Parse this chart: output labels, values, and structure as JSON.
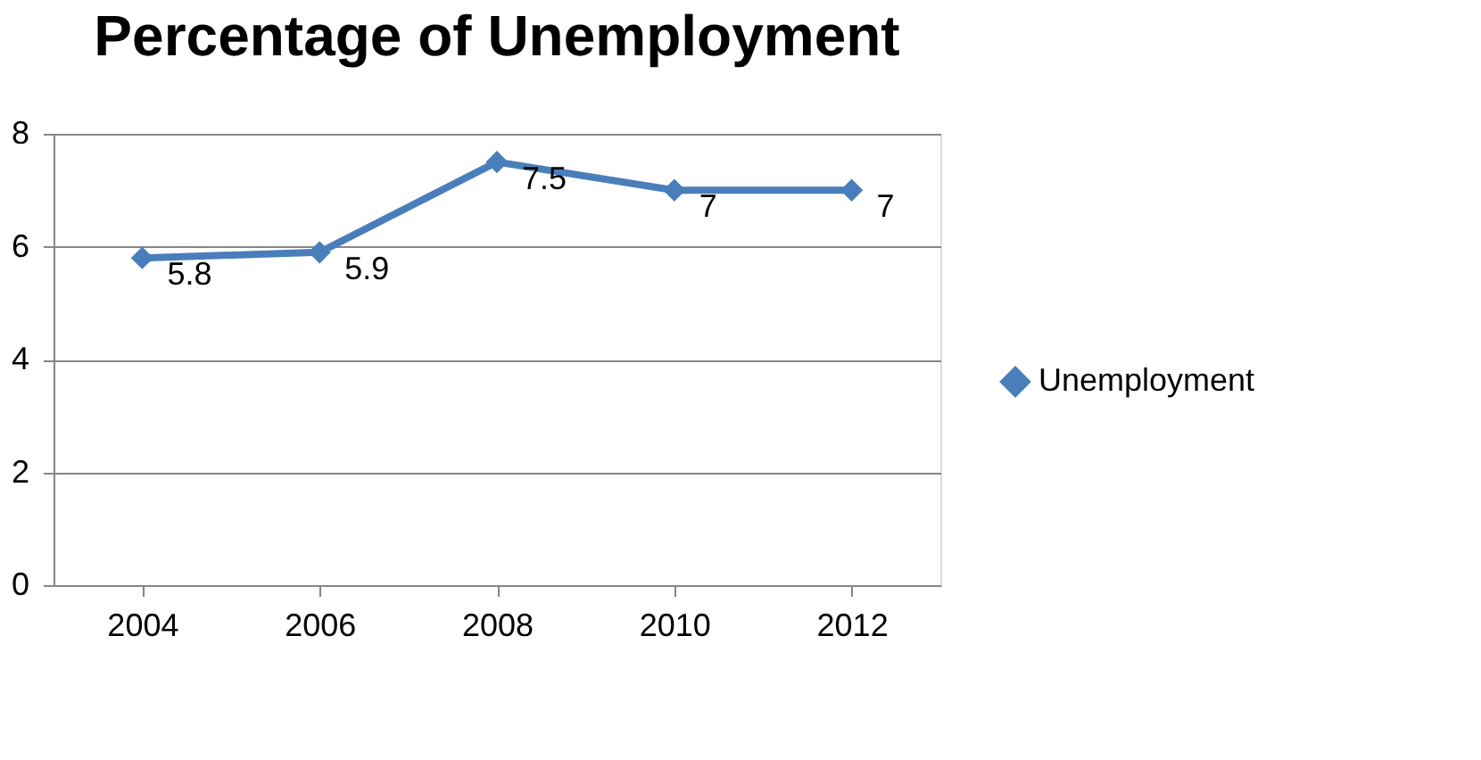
{
  "chart_data": {
    "type": "line",
    "title": "Percentage of Unemployment",
    "categories": [
      "2004",
      "2006",
      "2008",
      "2010",
      "2012"
    ],
    "series": [
      {
        "name": "Unemployment",
        "color": "#4a7ebb",
        "values": [
          5.8,
          5.9,
          7.5,
          7,
          7
        ]
      }
    ],
    "ylim": [
      0,
      8
    ],
    "yticks": [
      0,
      2,
      4,
      6,
      8
    ],
    "grid": "y",
    "legend": "right",
    "marker": "diamond",
    "line_style": "solid",
    "data_labels": true
  }
}
